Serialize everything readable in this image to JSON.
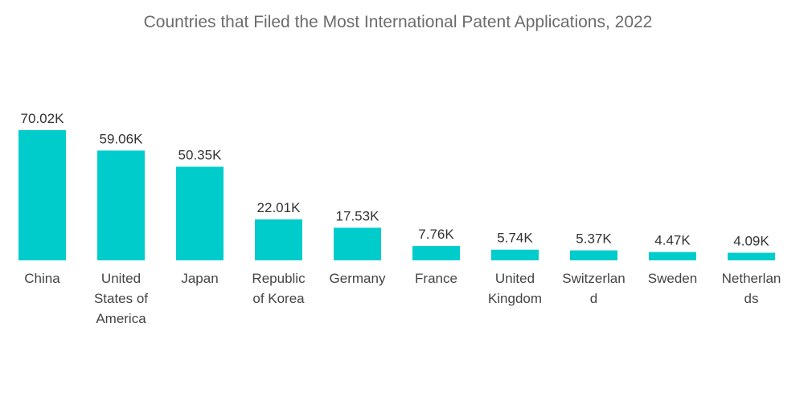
{
  "chart_data": {
    "type": "bar",
    "title": "Countries that Filed the Most International Patent Applications, 2022",
    "categories": [
      [
        "China"
      ],
      [
        "United",
        "States of",
        "America"
      ],
      [
        "Japan"
      ],
      [
        "Republic",
        "of Korea"
      ],
      [
        "Germany"
      ],
      [
        "France"
      ],
      [
        "United",
        "Kingdom"
      ],
      [
        "Switzerlan",
        "d"
      ],
      [
        "Sweden"
      ],
      [
        "Netherlan",
        "ds"
      ]
    ],
    "values": [
      70.02,
      59.06,
      50.35,
      22.01,
      17.53,
      7.76,
      5.74,
      5.37,
      4.47,
      4.09
    ],
    "value_labels": [
      "70.02K",
      "59.06K",
      "50.35K",
      "22.01K",
      "17.53K",
      "7.76K",
      "5.74K",
      "5.37K",
      "4.47K",
      "4.09K"
    ],
    "xlabel": "",
    "ylabel": "",
    "ylim": [
      0,
      70.02
    ],
    "grid": false,
    "legend": "none",
    "bar_color": "#00cccc"
  }
}
